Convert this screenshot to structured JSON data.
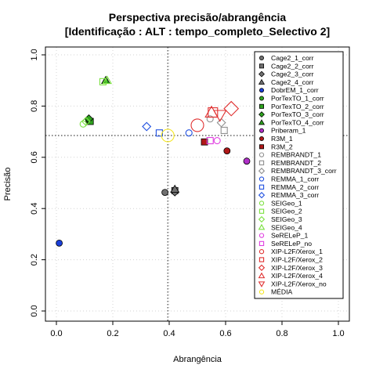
{
  "chart_data": {
    "type": "scatter",
    "title": "Perspectiva precisão/abrangência",
    "subtitle": "[Identificação : ALT : tempo_completo_Selectivo 2]",
    "xlabel": "Abrangência",
    "ylabel": "Precisão",
    "xlim": [
      0,
      1
    ],
    "ylim": [
      0,
      1
    ],
    "x_ticks": [
      "0.0",
      "0.2",
      "0.4",
      "0.6",
      "0.8",
      "1.0"
    ],
    "y_ticks": [
      "0.0",
      "0.2",
      "0.4",
      "0.6",
      "0.8",
      "1.0"
    ],
    "grid": true,
    "legend_position": "right",
    "reference_lines": {
      "x": 0.395,
      "y": 0.685
    },
    "series": [
      {
        "name": "Cage2_1_corr",
        "shape": "circle",
        "filled": true,
        "color": "#707070",
        "points": [
          [
            0.385,
            0.463
          ]
        ]
      },
      {
        "name": "Cage2_2_corr",
        "shape": "square",
        "filled": true,
        "color": "#707070",
        "points": [
          [
            0.42,
            0.47
          ]
        ]
      },
      {
        "name": "Cage2_3_corr",
        "shape": "diamond",
        "filled": true,
        "color": "#707070",
        "points": [
          [
            0.42,
            0.465
          ]
        ]
      },
      {
        "name": "Cage2_4_corr",
        "shape": "triangle",
        "filled": true,
        "color": "#707070",
        "points": [
          [
            0.42,
            0.475
          ]
        ]
      },
      {
        "name": "DobrEM_1_corr",
        "shape": "circle",
        "filled": true,
        "color": "#1a3fd9",
        "points": [
          [
            0.01,
            0.265
          ]
        ]
      },
      {
        "name": "PorTexTO_1_corr",
        "shape": "circle",
        "filled": true,
        "color": "#2ea31e",
        "points": [
          [
            0.115,
            0.745
          ]
        ]
      },
      {
        "name": "PorTexTO_2_corr",
        "shape": "square",
        "filled": true,
        "color": "#2ea31e",
        "points": [
          [
            0.12,
            0.74
          ]
        ]
      },
      {
        "name": "PorTexTO_3_corr",
        "shape": "diamond",
        "filled": true,
        "color": "#2ea31e",
        "points": [
          [
            0.115,
            0.75
          ]
        ]
      },
      {
        "name": "PorTexTO_4_corr",
        "shape": "triangle",
        "filled": true,
        "color": "#2ea31e",
        "points": [
          [
            0.175,
            0.9
          ]
        ]
      },
      {
        "name": "Priberam_1",
        "shape": "circle",
        "filled": true,
        "color": "#b030c8",
        "points": [
          [
            0.675,
            0.585
          ]
        ]
      },
      {
        "name": "R3M_1",
        "shape": "circle",
        "filled": true,
        "color": "#b01818",
        "points": [
          [
            0.605,
            0.625
          ]
        ]
      },
      {
        "name": "R3M_2",
        "shape": "square",
        "filled": true,
        "color": "#b01818",
        "points": [
          [
            0.525,
            0.66
          ]
        ]
      },
      {
        "name": "REMBRANDT_1",
        "shape": "circle",
        "filled": false,
        "color": "#909090",
        "points": [
          [
            0.545,
            0.75
          ]
        ]
      },
      {
        "name": "REMBRANDT_2",
        "shape": "square",
        "filled": false,
        "color": "#909090",
        "points": [
          [
            0.595,
            0.705
          ]
        ]
      },
      {
        "name": "REMBRANDT_3_corr",
        "shape": "diamond",
        "filled": false,
        "color": "#909090",
        "points": [
          [
            0.585,
            0.735
          ]
        ]
      },
      {
        "name": "REMMA_1_corr",
        "shape": "circle",
        "filled": false,
        "color": "#2050e0",
        "points": [
          [
            0.47,
            0.695
          ]
        ]
      },
      {
        "name": "REMMA_2_corr",
        "shape": "square",
        "filled": false,
        "color": "#2050e0",
        "points": [
          [
            0.365,
            0.695
          ]
        ]
      },
      {
        "name": "REMMA_3_corr",
        "shape": "diamond",
        "filled": false,
        "color": "#2050e0",
        "points": [
          [
            0.32,
            0.72
          ]
        ]
      },
      {
        "name": "SEIGeo_1",
        "shape": "circle",
        "filled": false,
        "color": "#7be040",
        "points": [
          [
            0.095,
            0.73
          ]
        ]
      },
      {
        "name": "SEIGeo_2",
        "shape": "square",
        "filled": false,
        "color": "#7be040",
        "points": [
          [
            0.165,
            0.895
          ]
        ]
      },
      {
        "name": "SEIGeo_3",
        "shape": "diamond",
        "filled": false,
        "color": "#7be040",
        "points": [
          [
            0.105,
            0.74
          ]
        ]
      },
      {
        "name": "SEIGeo_4",
        "shape": "triangle",
        "filled": false,
        "color": "#7be040",
        "points": [
          [
            0.18,
            0.9
          ]
        ]
      },
      {
        "name": "SeRELeP_1",
        "shape": "circle",
        "filled": false,
        "color": "#e040e0",
        "points": [
          [
            0.57,
            0.665
          ]
        ]
      },
      {
        "name": "SeRELeP_no",
        "shape": "square",
        "filled": false,
        "color": "#e040e0",
        "points": [
          [
            0.545,
            0.665
          ]
        ]
      },
      {
        "name": "XIP-L2F/Xerox_1",
        "shape": "circle",
        "filled": false,
        "color": "#e03030",
        "points": [
          [
            0.5,
            0.725
          ]
        ]
      },
      {
        "name": "XIP-L2F/Xerox_2",
        "shape": "square",
        "filled": false,
        "color": "#e03030",
        "points": [
          [
            0.555,
            0.775
          ]
        ]
      },
      {
        "name": "XIP-L2F/Xerox_3",
        "shape": "diamond",
        "filled": false,
        "color": "#e03030",
        "points": [
          [
            0.62,
            0.79
          ]
        ]
      },
      {
        "name": "XIP-L2F/Xerox_4",
        "shape": "triangle",
        "filled": false,
        "color": "#e03030",
        "points": [
          [
            0.55,
            0.775
          ]
        ]
      },
      {
        "name": "XIP-L2F/Xerox_no",
        "shape": "triangle-down",
        "filled": false,
        "color": "#e03030",
        "points": [
          [
            0.58,
            0.765
          ]
        ]
      },
      {
        "name": "MÉDIA",
        "shape": "circle",
        "filled": false,
        "color": "#f5e620",
        "points": [
          [
            0.395,
            0.685
          ]
        ]
      }
    ]
  }
}
